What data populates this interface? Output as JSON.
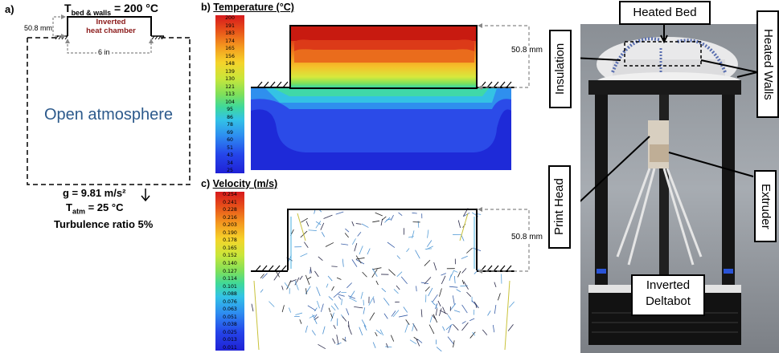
{
  "panel_a": {
    "label": "a)",
    "bed_temp": "T",
    "bed_temp_sub": "bed & walls",
    "bed_temp_val": "= 200 °C",
    "chamber_label_1": "Inverted",
    "chamber_label_2": "heat chamber",
    "height_dim": "50.8 mm",
    "width_dim": "6 in",
    "atmosphere": "Open atmosphere",
    "gravity": "g = 9.81 m/s²",
    "t_atm": "T",
    "t_atm_sub": "atm",
    "t_atm_val": "= 25 °C",
    "turbulence": "Turbulence ratio 5%"
  },
  "panel_b": {
    "label": "b)",
    "title": "Temperature (°C)",
    "dim": "50.8 mm",
    "colorbar": [
      "200",
      "191",
      "183",
      "174",
      "165",
      "156",
      "148",
      "139",
      "130",
      "121",
      "113",
      "104",
      "95",
      "86",
      "78",
      "69",
      "60",
      "51",
      "43",
      "34",
      "25"
    ]
  },
  "panel_c": {
    "label": "c)",
    "title": "Velocity (m/s)",
    "dim": "50.8 mm",
    "colorbar": [
      "0.254",
      "0.241",
      "0.228",
      "0.216",
      "0.203",
      "0.190",
      "0.178",
      "0.165",
      "0.152",
      "0.140",
      "0.127",
      "0.114",
      "0.101",
      "0.088",
      "0.076",
      "0.063",
      "0.051",
      "0.038",
      "0.025",
      "0.013",
      "0.011"
    ]
  },
  "photo": {
    "heated_bed": "Heated Bed",
    "insulation": "Insulation",
    "heated_walls": "Heated Walls",
    "print_head": "Print Head",
    "extruder": "Extruder",
    "inverted_1": "Inverted",
    "inverted_2": "Deltabot"
  },
  "colors": {
    "chamber_text": "#8b1a1a",
    "atmosphere_text": "#2d5a8c",
    "dash": "#888888"
  }
}
